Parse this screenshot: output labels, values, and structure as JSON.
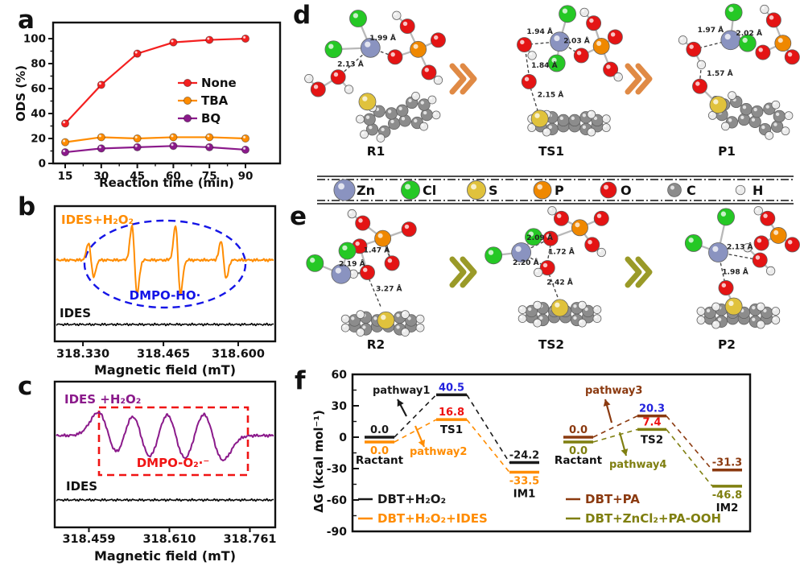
{
  "panel_letters": {
    "a": "a",
    "b": "b",
    "c": "c",
    "d": "d",
    "e": "e",
    "f": "f"
  },
  "element_colors": {
    "Zn": "#8a93c0",
    "Cl": "#25c825",
    "S": "#e0c23c",
    "P": "#ef8800",
    "O": "#e41414",
    "C": "#8c8c8c",
    "H": "#ebebeb"
  },
  "atom_legend": {
    "items": [
      {
        "el": "Zn"
      },
      {
        "el": "Cl"
      },
      {
        "el": "S"
      },
      {
        "el": "P"
      },
      {
        "el": "O"
      },
      {
        "el": "C"
      },
      {
        "el": "H"
      }
    ]
  },
  "chart_data": [
    {
      "id": "a",
      "type": "line",
      "xlabel": "Reaction time (min)",
      "ylabel": "ODS (%)",
      "x": [
        15,
        30,
        45,
        60,
        75,
        90
      ],
      "ylim": [
        0,
        100
      ],
      "yticks": [
        0,
        20,
        40,
        60,
        80,
        100
      ],
      "series": [
        {
          "name": "None",
          "color": "#f42020",
          "values": [
            32,
            63,
            88,
            97,
            99,
            100
          ]
        },
        {
          "name": "TBA",
          "color": "#ff8c00",
          "values": [
            17,
            21,
            20,
            21,
            21,
            20
          ]
        },
        {
          "name": "BQ",
          "color": "#8b1a8b",
          "values": [
            9,
            12,
            13,
            14,
            13,
            11
          ]
        }
      ],
      "legend_position": "right-middle",
      "grid": false
    },
    {
      "id": "b",
      "type": "line",
      "kind": "epr",
      "xlabel": "Magnetic field (mT)",
      "xticks": [
        "318.330",
        "318.465",
        "318.600"
      ],
      "trace_top": {
        "label": "IDES+H₂O₂",
        "color": "#ff8c00",
        "peaks": [
          0.16,
          0.36,
          0.56,
          0.77
        ],
        "amps": [
          0.5,
          1,
          1,
          0.55
        ]
      },
      "trace_bottom": {
        "label": "IDES",
        "color": "#0a0a0a"
      },
      "annotation": {
        "text": "DMPO-HO·",
        "color": "#1414e6",
        "shape": "dashed-ellipse"
      }
    },
    {
      "id": "c",
      "type": "line",
      "kind": "epr",
      "xlabel": "Magnetic field (mT)",
      "xticks": [
        "318.459",
        "318.610",
        "318.761"
      ],
      "trace_top": {
        "label": "IDES +H₂O₂",
        "color": "#8b1a8b",
        "peaks": [
          0.24,
          0.39,
          0.55,
          0.72
        ],
        "amps": [
          0.9,
          1,
          1,
          0.95
        ]
      },
      "trace_bottom": {
        "label": "IDES",
        "color": "#0a0a0a"
      },
      "annotation": {
        "text": "DMPO-O₂·⁻",
        "color": "#f01414",
        "shape": "dashed-rect"
      }
    },
    {
      "id": "f",
      "type": "energy-diagram",
      "ylabel": "ΔG (kcal mol⁻¹)",
      "yticks": [
        60,
        30,
        0,
        -30,
        -60,
        -90
      ],
      "ylim": [
        -90,
        60
      ],
      "groups": [
        {
          "stages": [
            "Ractant",
            "TS1",
            "IM1"
          ],
          "series": [
            {
              "name": "DBT+H₂O₂",
              "color": "#1a1a1a",
              "values": [
                0.0,
                40.5,
                -24.2
              ],
              "value_label_colors": [
                "#1a1a1a",
                "#2222dd",
                "#1a1a1a"
              ]
            },
            {
              "name": "DBT+H₂O₂+IDES",
              "color": "#ff8c00",
              "values": [
                0.0,
                16.8,
                -33.5
              ],
              "value_label_colors": [
                "#ff8c00",
                "#ee1111",
                "#ff8c00"
              ]
            }
          ],
          "pathways": [
            {
              "text": "pathway1",
              "color": "#1a1a1a"
            },
            {
              "text": "pathway2",
              "color": "#ff8c00"
            }
          ]
        },
        {
          "stages": [
            "Ractant",
            "TS2",
            "IM2"
          ],
          "series": [
            {
              "name": "DBT+PA",
              "color": "#8b3a10",
              "values": [
                0.0,
                20.3,
                -31.3
              ],
              "value_label_colors": [
                "#8b3a10",
                "#2222dd",
                "#8b3a10"
              ]
            },
            {
              "name": "DBT+ZnCl₂+PA-OOH",
              "color": "#7f7f10",
              "values": [
                0.0,
                7.4,
                -46.8
              ],
              "value_label_colors": [
                "#7f7f10",
                "#ee1111",
                "#7f7f10"
              ]
            }
          ],
          "pathways": [
            {
              "text": "pathway3",
              "color": "#8b3a10"
            },
            {
              "text": "pathway4",
              "color": "#7f7f10"
            }
          ]
        }
      ]
    }
  ],
  "structures": {
    "d_arrow_color": "#e08a45",
    "e_arrow_color": "#9a9a28",
    "d": [
      {
        "name": "R1",
        "atoms": [
          [
            "Cl",
            72,
            22
          ],
          [
            "Zn",
            88,
            60
          ],
          [
            "Cl",
            40,
            62
          ],
          [
            "O",
            120,
            72
          ],
          [
            "P",
            150,
            62
          ],
          [
            "O",
            136,
            32
          ],
          [
            "H",
            122,
            18
          ],
          [
            "O",
            176,
            50
          ],
          [
            "O",
            164,
            92
          ],
          [
            "H",
            176,
            102
          ],
          [
            "O",
            46,
            98
          ],
          [
            "O",
            20,
            114
          ],
          [
            "H",
            60,
            114
          ],
          [
            "H",
            8,
            100
          ]
        ],
        "bonds": [
          [
            0,
            1
          ],
          [
            2,
            1
          ],
          [
            3,
            4
          ],
          [
            4,
            5
          ],
          [
            5,
            6
          ],
          [
            4,
            7
          ],
          [
            4,
            8
          ],
          [
            8,
            9
          ],
          [
            10,
            11
          ],
          [
            10,
            12
          ],
          [
            11,
            13
          ]
        ],
        "measures": [
          [
            88,
            60,
            120,
            72,
            "1.99 Å",
            104,
            50
          ],
          [
            88,
            60,
            46,
            98,
            "2.13 Å",
            62,
            84
          ]
        ],
        "dbt": [
          124,
          150,
          -15,
          0.8,
          1
        ],
        "s_at": [
          84,
          130
        ]
      },
      {
        "name": "TS1",
        "atoms": [
          [
            "Cl",
            116,
            16
          ],
          [
            "Zn",
            106,
            52
          ],
          [
            "Cl",
            102,
            80
          ],
          [
            "O",
            60,
            56
          ],
          [
            "H",
            70,
            70
          ],
          [
            "O",
            66,
            104
          ],
          [
            "O",
            134,
            70
          ],
          [
            "P",
            160,
            58
          ],
          [
            "O",
            150,
            28
          ],
          [
            "H",
            138,
            14
          ],
          [
            "O",
            178,
            46
          ],
          [
            "O",
            172,
            88
          ],
          [
            "H",
            182,
            98
          ]
        ],
        "bonds": [
          [
            0,
            1
          ],
          [
            1,
            2
          ],
          [
            3,
            4
          ],
          [
            6,
            7
          ],
          [
            7,
            8
          ],
          [
            8,
            9
          ],
          [
            7,
            10
          ],
          [
            7,
            11
          ],
          [
            11,
            12
          ]
        ],
        "measures": [
          [
            60,
            56,
            106,
            52,
            "1.94 Å",
            80,
            42
          ],
          [
            106,
            52,
            134,
            70,
            "2.03 Å",
            128,
            54
          ],
          [
            62,
            68,
            66,
            96,
            "1.84 Å",
            86,
            86
          ],
          [
            68,
            112,
            78,
            144,
            "2.15 Å",
            94,
            124
          ]
        ],
        "dbt": [
          118,
          158,
          0,
          0.45,
          1
        ],
        "s_at": [
          80,
          152
        ]
      },
      {
        "name": "P1",
        "atoms": [
          [
            "Cl",
            104,
            14
          ],
          [
            "Zn",
            100,
            50
          ],
          [
            "Cl",
            122,
            54
          ],
          [
            "O",
            52,
            62
          ],
          [
            "H",
            38,
            50
          ],
          [
            "H",
            62,
            82
          ],
          [
            "O",
            60,
            110
          ],
          [
            "O",
            142,
            66
          ],
          [
            "P",
            168,
            54
          ],
          [
            "O",
            156,
            24
          ],
          [
            "H",
            144,
            10
          ],
          [
            "O",
            180,
            72
          ]
        ],
        "bonds": [
          [
            0,
            1
          ],
          [
            1,
            2
          ],
          [
            3,
            4
          ],
          [
            3,
            5
          ],
          [
            7,
            8
          ],
          [
            8,
            9
          ],
          [
            9,
            10
          ],
          [
            8,
            11
          ]
        ],
        "measures": [
          [
            52,
            62,
            100,
            50,
            "1.97 Å",
            74,
            40
          ],
          [
            100,
            50,
            142,
            66,
            "2.02 Å",
            124,
            44
          ],
          [
            62,
            82,
            60,
            104,
            "1.57 Å",
            86,
            96
          ]
        ],
        "dbt": [
          126,
          148,
          12,
          0.8,
          1
        ],
        "s_at": [
          84,
          134
        ],
        "sbond": 6
      }
    ],
    "e": [
      {
        "name": "R2",
        "atoms": [
          [
            "H",
            64,
            10
          ],
          [
            "O",
            78,
            22
          ],
          [
            "P",
            104,
            42
          ],
          [
            "O",
            138,
            30
          ],
          [
            "O",
            116,
            74
          ],
          [
            "O",
            74,
            52
          ],
          [
            "O",
            84,
            86
          ],
          [
            "H",
            66,
            88
          ],
          [
            "Cl",
            16,
            74
          ],
          [
            "Zn",
            50,
            88
          ],
          [
            "Cl",
            58,
            58
          ]
        ],
        "bonds": [
          [
            0,
            1
          ],
          [
            1,
            2
          ],
          [
            2,
            3
          ],
          [
            2,
            4
          ],
          [
            2,
            5
          ],
          [
            5,
            6
          ],
          [
            6,
            7
          ],
          [
            8,
            9
          ],
          [
            9,
            10
          ]
        ],
        "measures": [
          [
            104,
            42,
            116,
            74,
            "1.47 Å",
            96,
            60
          ],
          [
            50,
            88,
            84,
            86,
            "2.19 Å",
            64,
            78
          ],
          [
            86,
            94,
            102,
            132,
            "3.27 Å",
            112,
            110
          ]
        ],
        "dbt": [
          104,
          152,
          0,
          0.45,
          1
        ],
        "s_at": [
          108,
          148
        ]
      },
      {
        "name": "TS2",
        "atoms": [
          [
            "Cl",
            20,
            64
          ],
          [
            "Zn",
            56,
            60
          ],
          [
            "Cl",
            72,
            40
          ],
          [
            "O",
            94,
            42
          ],
          [
            "P",
            132,
            28
          ],
          [
            "O",
            108,
            16
          ],
          [
            "H",
            96,
            6
          ],
          [
            "O",
            160,
            16
          ],
          [
            "O",
            148,
            50
          ],
          [
            "H",
            160,
            60
          ],
          [
            "O",
            90,
            80
          ],
          [
            "H",
            78,
            86
          ]
        ],
        "bonds": [
          [
            0,
            1
          ],
          [
            1,
            2
          ],
          [
            3,
            4
          ],
          [
            4,
            5
          ],
          [
            5,
            6
          ],
          [
            4,
            7
          ],
          [
            4,
            8
          ],
          [
            8,
            9
          ],
          [
            10,
            11
          ]
        ],
        "measures": [
          [
            56,
            60,
            94,
            42,
            "2.09 Å",
            80,
            44
          ],
          [
            56,
            60,
            90,
            80,
            "2.20 Å",
            62,
            76
          ],
          [
            94,
            50,
            90,
            72,
            "1.72 Å",
            108,
            62
          ],
          [
            92,
            88,
            104,
            120,
            "2.42 Å",
            106,
            102
          ]
        ],
        "dbt": [
          106,
          140,
          0,
          0.45,
          1
        ],
        "s_at": [
          106,
          132
        ]
      },
      {
        "name": "P2",
        "atoms": [
          [
            "Cl",
            94,
            14
          ],
          [
            "Cl",
            52,
            48
          ],
          [
            "Zn",
            84,
            60
          ],
          [
            "O",
            138,
            70
          ],
          [
            "H",
            152,
            84
          ],
          [
            "H",
            122,
            54
          ],
          [
            "P",
            162,
            38
          ],
          [
            "O",
            148,
            16
          ],
          [
            "H",
            136,
            6
          ],
          [
            "O",
            180,
            50
          ],
          [
            "O",
            140,
            48
          ],
          [
            "O",
            94,
            106
          ]
        ],
        "bonds": [
          [
            0,
            2
          ],
          [
            1,
            2
          ],
          [
            3,
            4
          ],
          [
            3,
            5
          ],
          [
            6,
            7
          ],
          [
            7,
            8
          ],
          [
            6,
            9
          ],
          [
            6,
            10
          ]
        ],
        "measures": [
          [
            84,
            60,
            138,
            70,
            "2.13 Å",
            112,
            56
          ],
          [
            84,
            60,
            94,
            106,
            "1.98 Å",
            106,
            88
          ]
        ],
        "dbt": [
          110,
          142,
          0,
          0.45,
          1
        ],
        "s_at": [
          104,
          130
        ],
        "sbond": 11
      }
    ]
  }
}
